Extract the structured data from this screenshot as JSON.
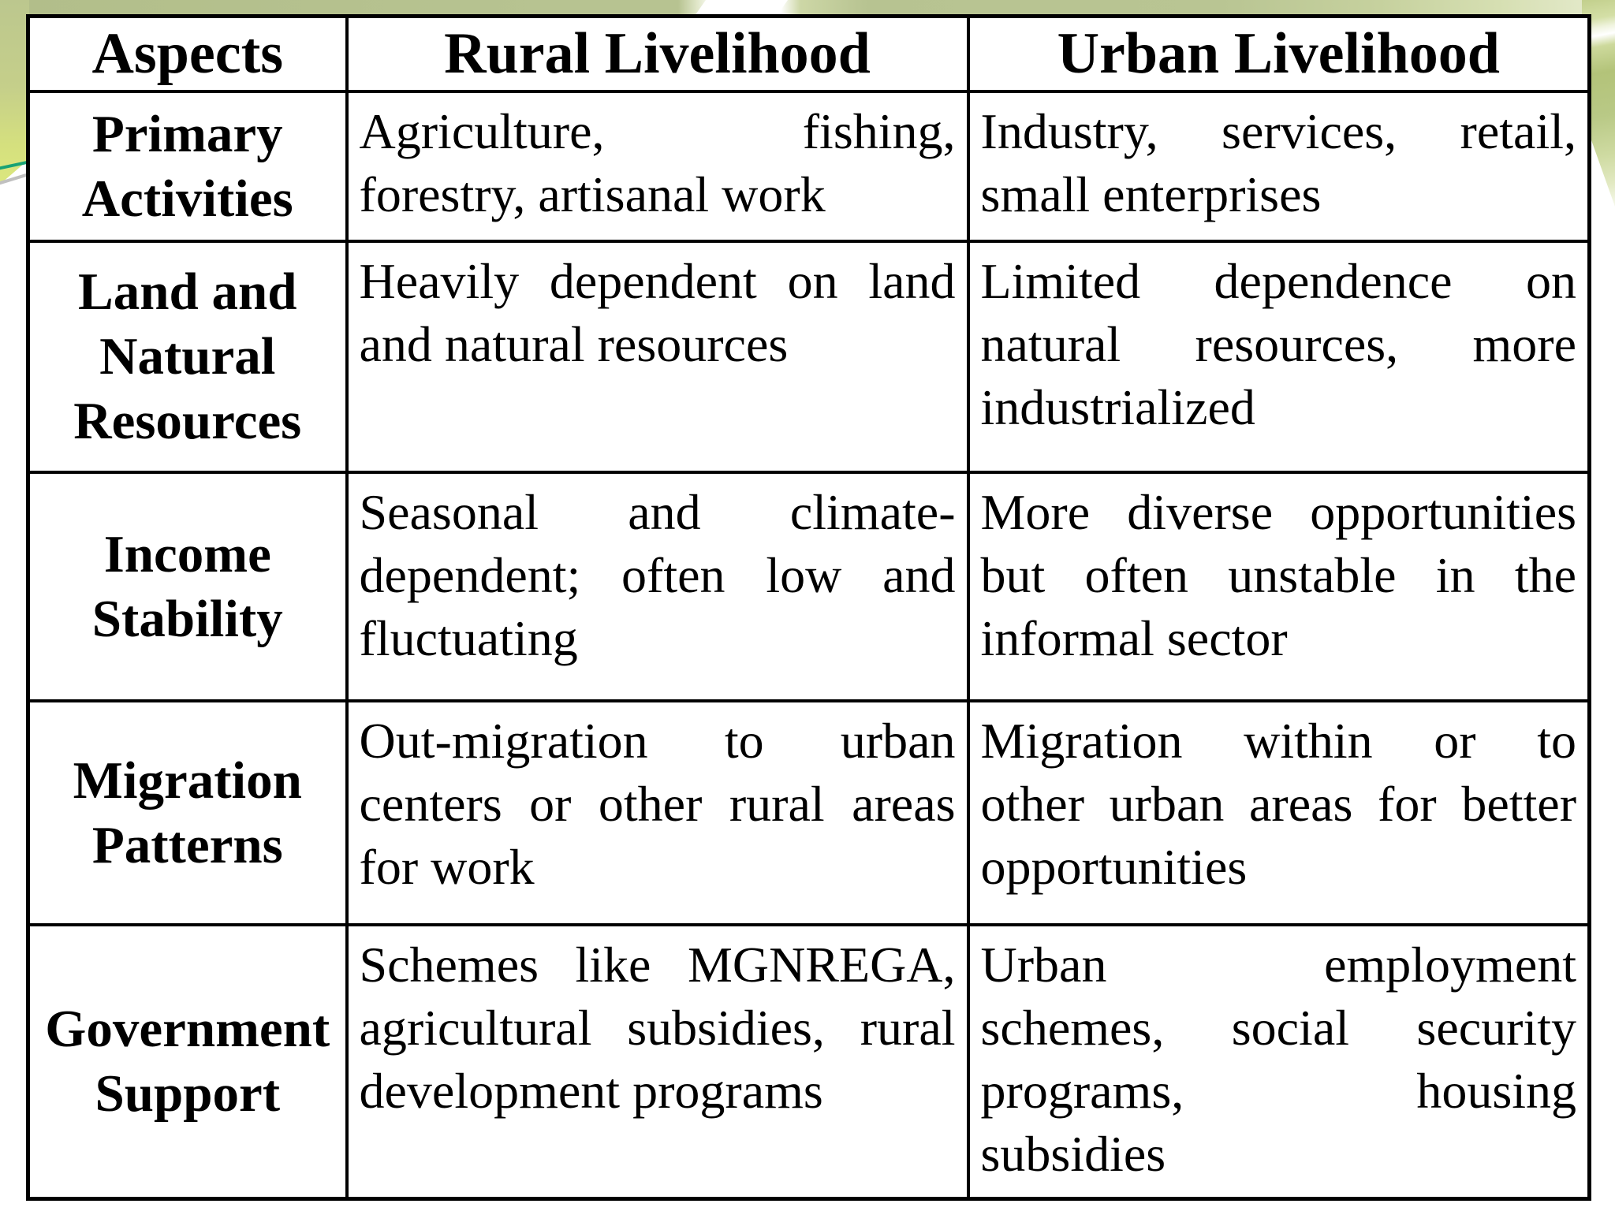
{
  "slide": {
    "background_color": "#ffffff",
    "decoration_colors": {
      "top_band_green": "#b7c391",
      "left_wedge_green": "#dde97e",
      "corner_green": "#b3c379",
      "accent_teal_line": "#17a275",
      "accent_silver_line": "#c0c0c0",
      "swoosh_white": "#ffffff"
    },
    "table": {
      "border_color": "#000000",
      "cell_background": "#ffffff",
      "text_color": "#000000",
      "headers": [
        "Aspects",
        "Rural Livelihood",
        "Urban Livelihood"
      ],
      "rows": [
        {
          "aspect_lines": [
            "Primary",
            "Activities"
          ],
          "rural_lines": [
            "Agriculture, fishing,",
            "forestry, artisanal work"
          ],
          "urban_lines": [
            "Industry, services, retail,",
            "small enterprises"
          ]
        },
        {
          "aspect_lines": [
            "Land and",
            "Natural",
            "Resources"
          ],
          "rural_lines": [
            "Heavily dependent on land",
            "and natural resources"
          ],
          "urban_lines": [
            "Limited dependence on",
            "natural resources, more",
            "industrialized"
          ]
        },
        {
          "aspect_lines": [
            "Income",
            "Stability"
          ],
          "rural_lines": [
            "Seasonal and climate-",
            "dependent; often low and",
            "fluctuating"
          ],
          "urban_lines": [
            "More diverse opportunities",
            "but often unstable in the",
            "informal sector"
          ]
        },
        {
          "aspect_lines": [
            "Migration",
            "Patterns"
          ],
          "rural_lines": [
            "Out-migration to urban",
            "centers or other rural areas",
            "for work"
          ],
          "urban_lines": [
            "Migration within or to",
            "other urban areas for better",
            "opportunities"
          ]
        },
        {
          "aspect_lines": [
            "Government",
            "Support"
          ],
          "rural_lines": [
            "Schemes like MGNREGA,",
            "agricultural subsidies, rural",
            "development programs"
          ],
          "urban_lines": [
            "Urban employment",
            "schemes, social security",
            "programs, housing",
            "subsidies"
          ]
        }
      ]
    }
  }
}
